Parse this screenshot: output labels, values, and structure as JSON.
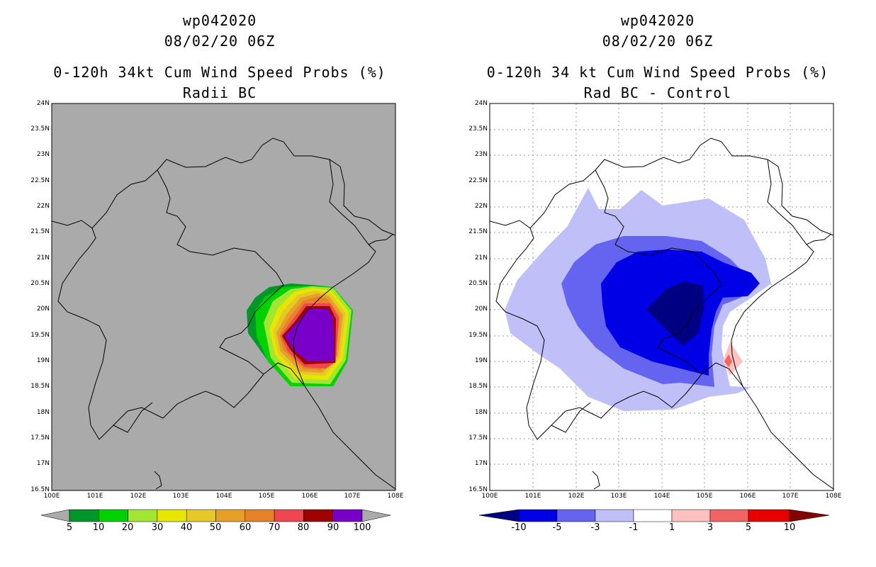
{
  "left_panel": {
    "storm_id": "wp042020",
    "datetime": "08/02/20 06Z",
    "title": "0-120h 34kt Cum Wind Speed Probs (%)",
    "subtitle": "Radii BC",
    "background": "#aaaaaa",
    "colorbar": {
      "labels": [
        "5",
        "10",
        "20",
        "30",
        "40",
        "50",
        "60",
        "70",
        "80",
        "90",
        "100"
      ],
      "colors": [
        "#00962a",
        "#00d200",
        "#a0e632",
        "#e6e600",
        "#e6c828",
        "#e6a028",
        "#e68228",
        "#f04650",
        "#a00000",
        "#7800c8"
      ],
      "extend_color": "#aaaaaa"
    }
  },
  "right_panel": {
    "storm_id": "wp042020",
    "datetime": "08/02/20 06Z",
    "title": "0-120h 34 kt Cum Wind Speed Probs (%)",
    "subtitle": "Rad BC - Control",
    "background": "#ffffff",
    "colorbar": {
      "labels": [
        "-10",
        "-5",
        "-3",
        "-1",
        "1",
        "3",
        "5",
        "10"
      ],
      "colors": [
        "#000082",
        "#0000e6",
        "#6464f0",
        "#c0c0f8",
        "#ffffff",
        "#ffc0c0",
        "#f06464",
        "#e60000",
        "#820000"
      ]
    }
  },
  "axes": {
    "lat_labels": [
      "24N",
      "23.5N",
      "23N",
      "22.5N",
      "22N",
      "21.5N",
      "21N",
      "20.5N",
      "20N",
      "19.5N",
      "19N",
      "18.5N",
      "18N",
      "17.5N",
      "17N",
      "16.5N"
    ],
    "lon_labels": [
      "100E",
      "101E",
      "102E",
      "103E",
      "104E",
      "105E",
      "106E",
      "107E",
      "108E"
    ]
  }
}
